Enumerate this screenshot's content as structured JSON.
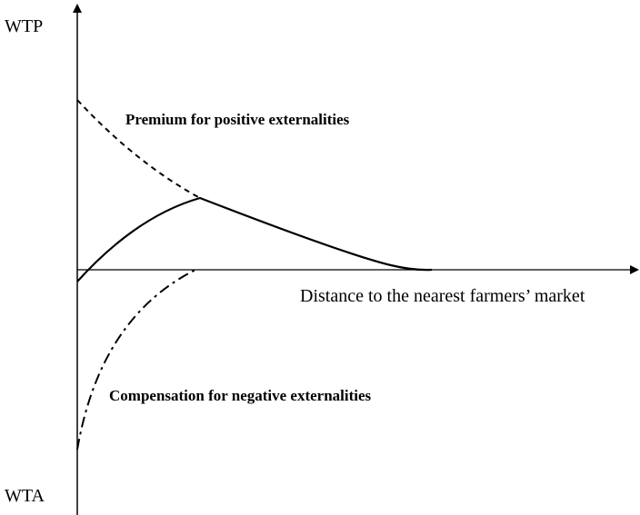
{
  "axes": {
    "y_top_label": "WTP",
    "y_bottom_label": "WTA",
    "x_label": "Distance to the nearest farmers’ market"
  },
  "annotations": {
    "positive": "Premium for positive externalities",
    "negative": "Compensation for negative externalities"
  }
}
